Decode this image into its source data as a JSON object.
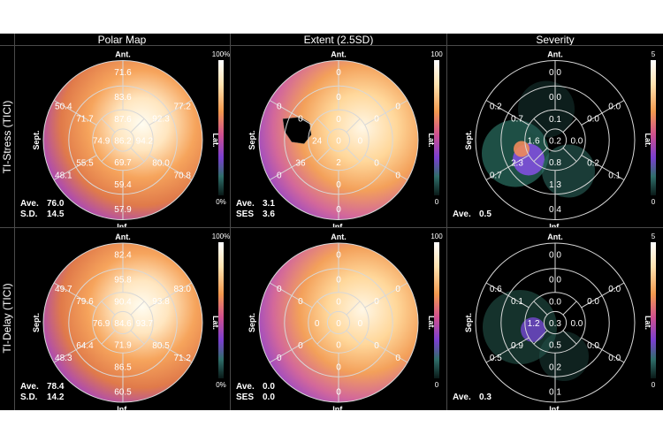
{
  "columns": [
    "Polar Map",
    "Extent (2.5SD)",
    "Severity"
  ],
  "rows": [
    "TI-Stress (TICI)",
    "TI-Delay (TICI)"
  ],
  "orient": {
    "ant": "Ant.",
    "inf": "Inf.",
    "sept": "Sept.",
    "lat": "Lat."
  },
  "panels": [
    {
      "id": "stress-polar",
      "scale": {
        "max": "100%",
        "min": "0%",
        "type": "polar"
      },
      "stats": [
        {
          "k": "Ave.",
          "v": "76.0"
        },
        {
          "k": "S.D.",
          "v": "14.5"
        }
      ],
      "values": {
        "r1": [
          "71.6",
          "77.2",
          "70.8",
          "57.9",
          "48.1",
          "50.4"
        ],
        "r2": [
          "83.6",
          "92.3",
          "80.0",
          "59.4",
          "55.5",
          "71.7"
        ],
        "r3": [
          "87.6",
          "94.2",
          "69.7",
          "74.9"
        ],
        "apex": "86.2"
      }
    },
    {
      "id": "stress-extent",
      "scale": {
        "max": "100",
        "min": "0",
        "type": "extent"
      },
      "stats": [
        {
          "k": "Ave.",
          "v": "3.1"
        },
        {
          "k": "SES",
          "v": "3.6"
        }
      ],
      "values": {
        "r1": [
          "0",
          "0",
          "0",
          "0",
          "0",
          "0"
        ],
        "r2": [
          "0",
          "0",
          "0",
          "0",
          "36",
          "0"
        ],
        "r3": [
          "0",
          "0",
          "2",
          "24"
        ],
        "apex": "0"
      }
    },
    {
      "id": "stress-severity",
      "scale": {
        "max": "5",
        "min": "0",
        "type": "severity"
      },
      "stats": [
        {
          "k": "Ave.",
          "v": "0.5"
        }
      ],
      "values": {
        "r1": [
          "0.0",
          "0.0",
          "0.1",
          "0.4",
          "0.7",
          "0.2"
        ],
        "r2": [
          "0.0",
          "0.0",
          "0.2",
          "1.3",
          "2.3",
          "0.7"
        ],
        "r3": [
          "0.1",
          "0.0",
          "0.8",
          "1.6"
        ],
        "apex": "0.2"
      }
    },
    {
      "id": "delay-polar",
      "scale": {
        "max": "100%",
        "min": "0%",
        "type": "polar"
      },
      "stats": [
        {
          "k": "Ave.",
          "v": "78.4"
        },
        {
          "k": "S.D.",
          "v": "14.2"
        }
      ],
      "values": {
        "r1": [
          "82.4",
          "83.0",
          "71.2",
          "60.5",
          "48.3",
          "49.7"
        ],
        "r2": [
          "95.8",
          "93.8",
          "80.5",
          "86.5",
          "64.4",
          "79.6"
        ],
        "r3": [
          "90.4",
          "93.7",
          "71.9",
          "76.9"
        ],
        "apex": "84.6"
      }
    },
    {
      "id": "delay-extent",
      "scale": {
        "max": "100",
        "min": "0",
        "type": "extent"
      },
      "stats": [
        {
          "k": "Ave.",
          "v": "0.0"
        },
        {
          "k": "SES",
          "v": "0.0"
        }
      ],
      "values": {
        "r1": [
          "0",
          "0",
          "0",
          "0",
          "0",
          "0"
        ],
        "r2": [
          "0",
          "0",
          "0",
          "0",
          "0",
          "0"
        ],
        "r3": [
          "0",
          "0",
          "0",
          "0"
        ],
        "apex": "0"
      }
    },
    {
      "id": "delay-severity",
      "scale": {
        "max": "5",
        "min": "0",
        "type": "severity"
      },
      "stats": [
        {
          "k": "Ave.",
          "v": "0.3"
        }
      ],
      "values": {
        "r1": [
          "0.0",
          "0.0",
          "0.0",
          "0.1",
          "0.5",
          "0.6"
        ],
        "r2": [
          "0.0",
          "0.0",
          "0.0",
          "0.2",
          "0.9",
          "0.1"
        ],
        "r3": [
          "0.0",
          "0.0",
          "0.5",
          "1.2"
        ],
        "apex": "0.3"
      }
    }
  ]
}
